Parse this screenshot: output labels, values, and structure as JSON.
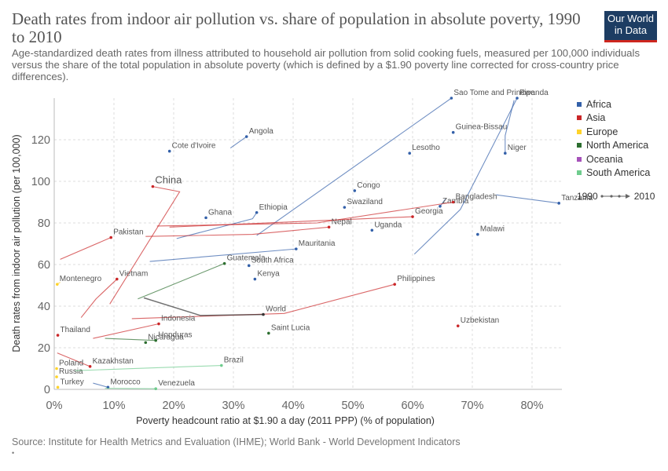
{
  "header": {
    "title": "Death rates from indoor air pollution vs. share of population in absolute poverty, 1990 to 2010",
    "subtitle": "Age-standardized death rates from illness attributed to household air pollution from solid cooking fuels, measured per 100,000 individuals versus the share of the total population in absolute poverty (which is defined by a $1.90 poverty line corrected for cross-country price differences).",
    "logo_line1": "Our World",
    "logo_line2": "in Data"
  },
  "footer": {
    "source": "Source: Institute for Health Metrics and Evaluation (IHME); World Bank - World Development Indicators",
    "dot": "•"
  },
  "legend": {
    "regions": [
      {
        "name": "Africa",
        "color": "#3360a9"
      },
      {
        "name": "Asia",
        "color": "#ca2628"
      },
      {
        "name": "Europe",
        "color": "#ffd32a"
      },
      {
        "name": "North America",
        "color": "#2c6e2f"
      },
      {
        "name": "Oceania",
        "color": "#a652ba"
      },
      {
        "name": "South America",
        "color": "#6fcc8e"
      }
    ],
    "year_start": "1990",
    "year_end": "2010"
  },
  "chart_data": {
    "type": "scatter",
    "xlabel": "Poverty headcount ratio at $1.90 a day (2011 PPP) (% of population)",
    "ylabel": "Death rates from indoor air pollution (per 100,000)",
    "xlim": [
      0,
      85
    ],
    "ylim": [
      0,
      140
    ],
    "x_ticks": [
      "0%",
      "10%",
      "20%",
      "30%",
      "40%",
      "50%",
      "60%",
      "70%",
      "80%"
    ],
    "x_tick_values": [
      0,
      10,
      20,
      30,
      40,
      50,
      60,
      70,
      80
    ],
    "y_ticks": [
      "0",
      "20",
      "40",
      "60",
      "80",
      "100",
      "120"
    ],
    "y_tick_values": [
      0,
      20,
      40,
      60,
      80,
      100,
      120
    ],
    "grid": true,
    "legend_position": "right",
    "series": [
      {
        "name": "Angola",
        "region": "Africa",
        "points": [
          [
            29.5,
            116
          ],
          [
            32.2,
            121.5
          ]
        ],
        "label": "Angola"
      },
      {
        "name": "Cote d'Ivoire",
        "region": "Africa",
        "points": [
          [
            19.2,
            114
          ],
          [
            19.3,
            114.5
          ]
        ],
        "label": "Cote d'Ivoire"
      },
      {
        "name": "Guinea-Bissau",
        "region": "Africa",
        "points": [
          [
            66.7,
            123
          ],
          [
            66.8,
            123.5
          ]
        ],
        "label": "Guinea-Bissau"
      },
      {
        "name": "Lesotho",
        "region": "Africa",
        "points": [
          [
            59.4,
            113
          ],
          [
            59.5,
            113.5
          ]
        ],
        "label": "Lesotho"
      },
      {
        "name": "Niger",
        "region": "Africa",
        "points": [
          [
            77,
            139
          ],
          [
            75.5,
            122
          ],
          [
            75.5,
            113.5
          ]
        ],
        "label": "Niger"
      },
      {
        "name": "Congo",
        "region": "Africa",
        "points": [
          [
            50.2,
            95.5
          ],
          [
            50.3,
            95.5
          ]
        ],
        "label": "Congo"
      },
      {
        "name": "Swaziland",
        "region": "Africa",
        "points": [
          [
            48.5,
            87.5
          ],
          [
            48.6,
            87.5
          ]
        ],
        "label": "Swaziland"
      },
      {
        "name": "Zambia",
        "region": "Africa",
        "points": [
          [
            65.5,
            91.5
          ],
          [
            64.6,
            88
          ]
        ],
        "label": "Zambia"
      },
      {
        "name": "Tanzania",
        "region": "Africa",
        "points": [
          [
            74,
            93.5
          ],
          [
            84.5,
            89.5
          ]
        ],
        "label": "Tanzania"
      },
      {
        "name": "Malawi",
        "region": "Africa",
        "points": [
          [
            71,
            74.5
          ],
          [
            70.9,
            74.5
          ]
        ],
        "label": "Malawi"
      },
      {
        "name": "Uganda",
        "region": "Africa",
        "points": [
          [
            53.2,
            76.5
          ],
          [
            53.2,
            76.5
          ]
        ],
        "label": "Uganda"
      },
      {
        "name": "Ghana",
        "region": "Africa",
        "points": [
          [
            25.5,
            82.5
          ],
          [
            25.4,
            82.5
          ]
        ],
        "label": "Ghana"
      },
      {
        "name": "Sao Tome and Principe",
        "region": "Africa",
        "points": [
          [
            33.9,
            74
          ],
          [
            66.5,
            140
          ]
        ],
        "label": "Sao Tome and Principe"
      },
      {
        "name": "Ethiopia",
        "region": "Africa",
        "points": [
          [
            20.5,
            72.5
          ],
          [
            33.2,
            82
          ],
          [
            33.9,
            85
          ]
        ],
        "label": "Ethiopia"
      },
      {
        "name": "Rwanda",
        "region": "Africa",
        "points": [
          [
            60.3,
            65
          ],
          [
            68,
            86.5
          ],
          [
            77.5,
            140
          ]
        ],
        "label": "Rwanda"
      },
      {
        "name": "South Africa",
        "region": "Africa",
        "points": [
          [
            32.5,
            59.5
          ],
          [
            32.6,
            59.5
          ]
        ],
        "label": "South Africa"
      },
      {
        "name": "Kenya",
        "region": "Africa",
        "points": [
          [
            33.5,
            53
          ],
          [
            33.6,
            53
          ]
        ],
        "label": "Kenya"
      },
      {
        "name": "Saint Lucia",
        "region": "North America",
        "points": [
          [
            35.8,
            27
          ],
          [
            35.9,
            27
          ]
        ],
        "label": "Saint Lucia"
      },
      {
        "name": "Bangladesh",
        "region": "Asia",
        "points": [
          [
            17.2,
            78.5
          ],
          [
            44,
            80
          ],
          [
            66.8,
            90
          ]
        ],
        "label": "Bangladesh"
      },
      {
        "name": "Georgia",
        "region": "Asia",
        "points": [
          [
            19.3,
            78
          ],
          [
            60,
            83
          ]
        ],
        "label": "Georgia"
      },
      {
        "name": "Nepal",
        "region": "Asia",
        "points": [
          [
            15.3,
            73.5
          ],
          [
            33.2,
            74.5
          ],
          [
            46,
            78
          ]
        ],
        "label": "Nepal"
      },
      {
        "name": "Uzbekistan",
        "region": "Asia",
        "points": [
          [
            67.5,
            30.5
          ],
          [
            67.6,
            30.5
          ]
        ],
        "label": "Uzbekistan"
      },
      {
        "name": "Philippines",
        "region": "Asia",
        "points": [
          [
            13,
            34
          ],
          [
            38.5,
            36.5
          ],
          [
            57,
            50.5
          ]
        ],
        "label": "Philippines"
      },
      {
        "name": "China",
        "region": "Asia",
        "points": [
          [
            9.3,
            41
          ],
          [
            21,
            95
          ],
          [
            16.5,
            97.5
          ]
        ],
        "label": "China"
      },
      {
        "name": "Mauritania",
        "region": "Africa",
        "points": [
          [
            16,
            61.5
          ],
          [
            40.5,
            67.5
          ]
        ],
        "label": "Mauritania"
      },
      {
        "name": "Guatemala",
        "region": "North America",
        "points": [
          [
            14,
            43.5
          ],
          [
            28.5,
            60.5
          ]
        ],
        "label": "Guatemala"
      },
      {
        "name": "Pakistan",
        "region": "Asia",
        "points": [
          [
            1,
            62.5
          ],
          [
            9.5,
            73
          ]
        ],
        "label": "Pakistan"
      },
      {
        "name": "Nicaragua",
        "region": "North America",
        "points": [
          [
            15.2,
            22.5
          ],
          [
            15.3,
            22.5
          ]
        ],
        "label": "Nicaragua"
      },
      {
        "name": "Honduras",
        "region": "North America",
        "points": [
          [
            8.5,
            24.5
          ],
          [
            17,
            23.5
          ]
        ],
        "label": "Honduras"
      },
      {
        "name": "Indonesia",
        "region": "Asia",
        "points": [
          [
            6.5,
            24.5
          ],
          [
            17.5,
            31.5
          ]
        ],
        "label": "Indonesia"
      },
      {
        "name": "Vietnam",
        "region": "Asia",
        "points": [
          [
            4.5,
            34.5
          ],
          [
            7,
            43.5
          ],
          [
            10.5,
            53
          ]
        ],
        "label": "Vietnam"
      },
      {
        "name": "Thailand",
        "region": "Asia",
        "points": [
          [
            0.5,
            26
          ],
          [
            0.6,
            26
          ]
        ],
        "label": "Thailand"
      },
      {
        "name": "World",
        "region": "",
        "points": [
          [
            15,
            44
          ],
          [
            24.5,
            35.5
          ],
          [
            35,
            36
          ]
        ],
        "label": "World"
      },
      {
        "name": "Montenegro",
        "region": "Europe",
        "points": [
          [
            1,
            51.5
          ],
          [
            0.5,
            50.5
          ]
        ],
        "label": "Montenegro"
      },
      {
        "name": "Kazakhstan",
        "region": "Asia",
        "points": [
          [
            0.5,
            17.5
          ],
          [
            6,
            11
          ]
        ],
        "label": "Kazakhstan"
      },
      {
        "name": "Poland",
        "region": "Europe",
        "points": [
          [
            0.3,
            10
          ],
          [
            0.4,
            10
          ]
        ],
        "label": "Poland"
      },
      {
        "name": "Russia",
        "region": "Europe",
        "points": [
          [
            0.3,
            6
          ],
          [
            0.4,
            6
          ]
        ],
        "label": "Russia"
      },
      {
        "name": "Brazil",
        "region": "South America",
        "points": [
          [
            3.5,
            9
          ],
          [
            28,
            11.5
          ]
        ],
        "label": "Brazil"
      },
      {
        "name": "Morocco",
        "region": "Africa",
        "points": [
          [
            6.5,
            3
          ],
          [
            9,
            1
          ]
        ],
        "label": "Morocco"
      },
      {
        "name": "Turkey",
        "region": "Europe",
        "points": [
          [
            0.5,
            1
          ],
          [
            0.6,
            1
          ]
        ],
        "label": "Turkey"
      },
      {
        "name": "Venezuela",
        "region": "South America",
        "points": [
          [
            8.5,
            0.5
          ],
          [
            17,
            0.3
          ]
        ],
        "label": "Venezuela"
      }
    ]
  }
}
